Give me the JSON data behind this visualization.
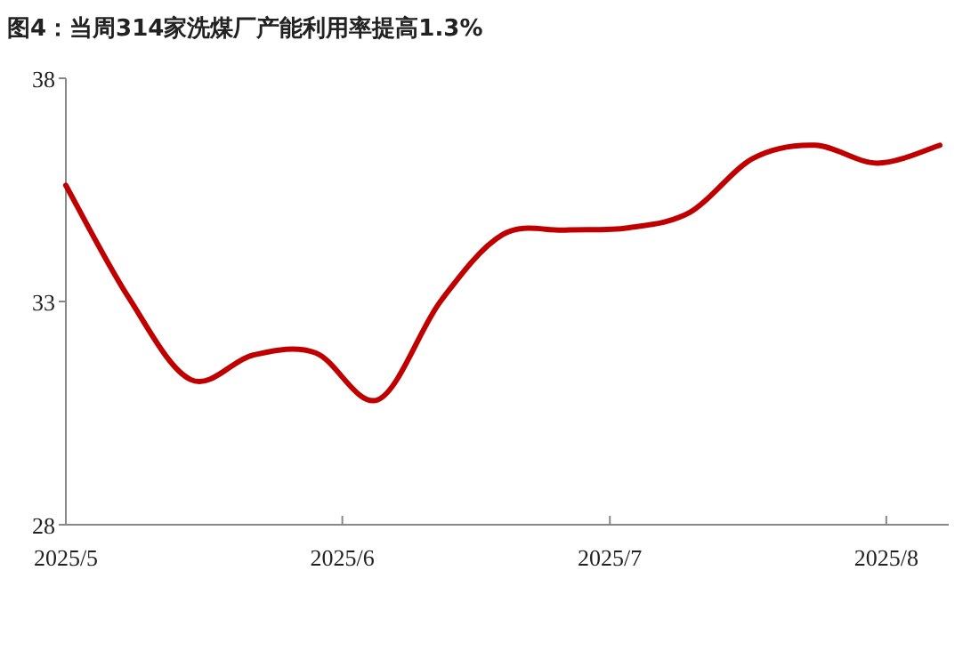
{
  "chart_data": {
    "type": "line",
    "title": "图4：当周314家洗煤厂产能利用率提高1.3%",
    "x": [
      "2025-05-01",
      "2025-05-08",
      "2025-05-15",
      "2025-05-22",
      "2025-05-29",
      "2025-06-05",
      "2025-06-12",
      "2025-06-19",
      "2025-06-26",
      "2025-07-03",
      "2025-07-10",
      "2025-07-17",
      "2025-07-24",
      "2025-07-31",
      "2025-08-07"
    ],
    "series": [
      {
        "color": "#c00000",
        "values": [
          35.6,
          33.1,
          31.25,
          31.8,
          31.85,
          30.8,
          33.0,
          34.5,
          34.6,
          34.65,
          35.0,
          36.2,
          36.5,
          36.1,
          36.5
        ]
      }
    ],
    "xlim": [
      "2025-05-01",
      "2025-08-08"
    ],
    "xticks": [
      {
        "value": "2025-05-01",
        "label": "2025/5"
      },
      {
        "value": "2025-06-01",
        "label": "2025/6"
      },
      {
        "value": "2025-07-01",
        "label": "2025/7"
      },
      {
        "value": "2025-08-01",
        "label": "2025/8"
      }
    ],
    "ylim": [
      28,
      38
    ],
    "yticks": [
      28,
      33,
      38
    ],
    "grid": false,
    "marker": "none",
    "line_style": "solid"
  }
}
